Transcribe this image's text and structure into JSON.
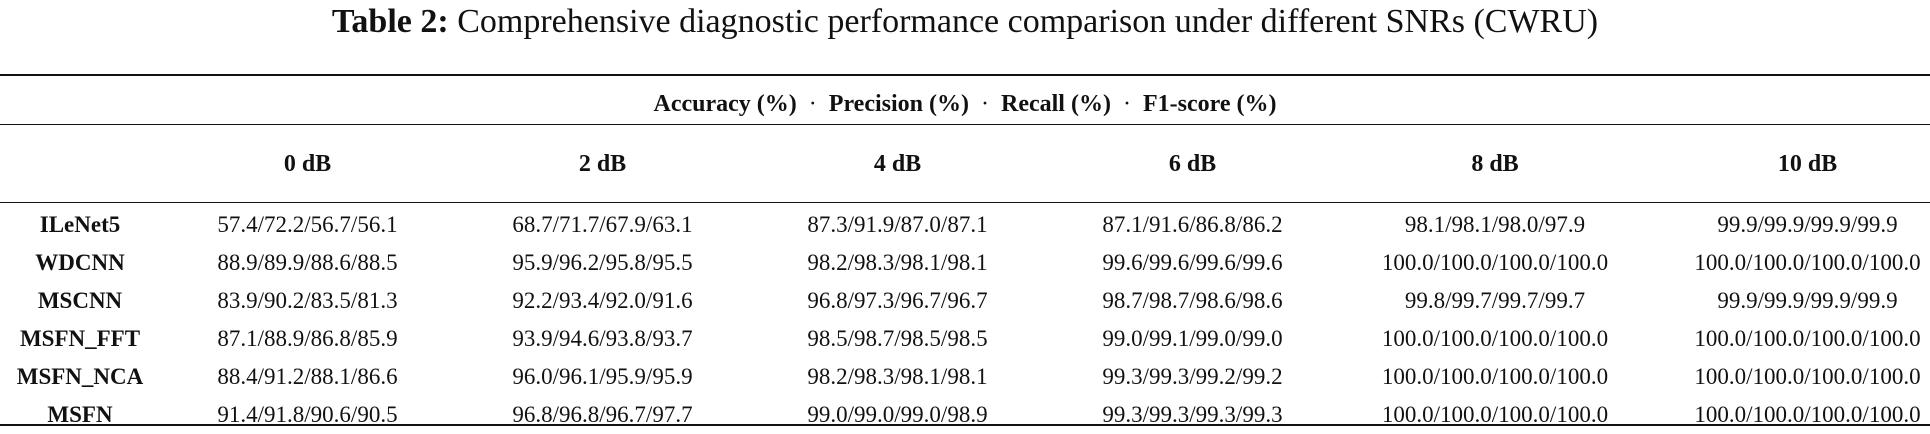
{
  "caption": {
    "label": "Table 2:",
    "text": "Comprehensive diagnostic performance comparison under different SNRs (CWRU)"
  },
  "metrics_header": {
    "items": [
      "Accuracy (%)",
      "Precision (%)",
      "Recall (%)",
      "F1-score (%)"
    ],
    "separator": "·"
  },
  "table": {
    "columns": [
      "",
      "0 dB",
      "2 dB",
      "4 dB",
      "6 dB",
      "8 dB",
      "10 dB"
    ],
    "rows": [
      {
        "model": "ILeNet5",
        "values": [
          "57.4/72.2/56.7/56.1",
          "68.7/71.7/67.9/63.1",
          "87.3/91.9/87.0/87.1",
          "87.1/91.6/86.8/86.2",
          "98.1/98.1/98.0/97.9",
          "99.9/99.9/99.9/99.9"
        ]
      },
      {
        "model": "WDCNN",
        "values": [
          "88.9/89.9/88.6/88.5",
          "95.9/96.2/95.8/95.5",
          "98.2/98.3/98.1/98.1",
          "99.6/99.6/99.6/99.6",
          "100.0/100.0/100.0/100.0",
          "100.0/100.0/100.0/100.0"
        ]
      },
      {
        "model": "MSCNN",
        "values": [
          "83.9/90.2/83.5/81.3",
          "92.2/93.4/92.0/91.6",
          "96.8/97.3/96.7/96.7",
          "98.7/98.7/98.6/98.6",
          "99.8/99.7/99.7/99.7",
          "99.9/99.9/99.9/99.9"
        ]
      },
      {
        "model": "MSFN_FFT",
        "values": [
          "87.1/88.9/86.8/85.9",
          "93.9/94.6/93.8/93.7",
          "98.5/98.7/98.5/98.5",
          "99.0/99.1/99.0/99.0",
          "100.0/100.0/100.0/100.0",
          "100.0/100.0/100.0/100.0"
        ]
      },
      {
        "model": "MSFN_NCA",
        "values": [
          "88.4/91.2/88.1/86.6",
          "96.0/96.1/95.9/95.9",
          "98.2/98.3/98.1/98.1",
          "99.3/99.3/99.2/99.2",
          "100.0/100.0/100.0/100.0",
          "100.0/100.0/100.0/100.0"
        ]
      },
      {
        "model": "MSFN",
        "values": [
          "91.4/91.8/90.6/90.5",
          "96.8/96.8/96.7/97.7",
          "99.0/99.0/99.0/98.9",
          "99.3/99.3/99.3/99.3",
          "100.0/100.0/100.0/100.0",
          "100.0/100.0/100.0/100.0"
        ]
      }
    ]
  }
}
